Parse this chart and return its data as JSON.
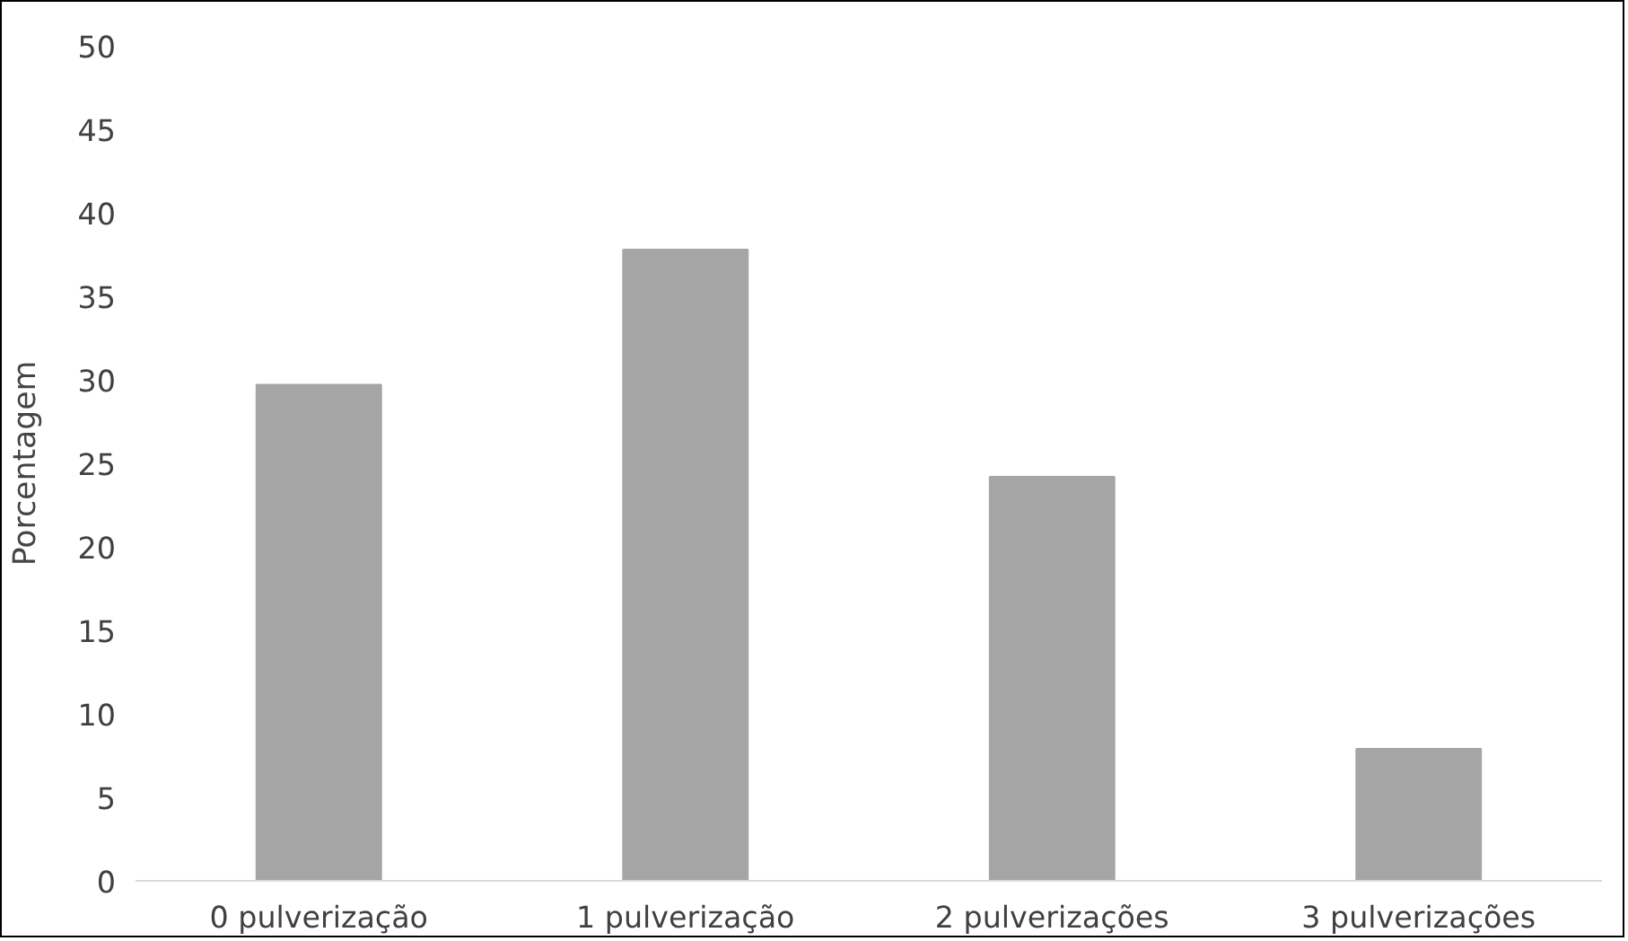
{
  "chart_data": {
    "type": "bar",
    "ylabel": "Porcentagem",
    "categories": [
      "0 pulverização",
      "1 pulverização",
      "2 pulverizações",
      "3 pulverizações"
    ],
    "values": [
      29.7,
      37.8,
      24.2,
      7.9
    ],
    "color": "#a5a5a5",
    "ylim": [
      0,
      50
    ],
    "yticks": [
      0,
      5,
      10,
      15,
      20,
      25,
      30,
      35,
      40,
      45,
      50
    ],
    "grid": false
  }
}
